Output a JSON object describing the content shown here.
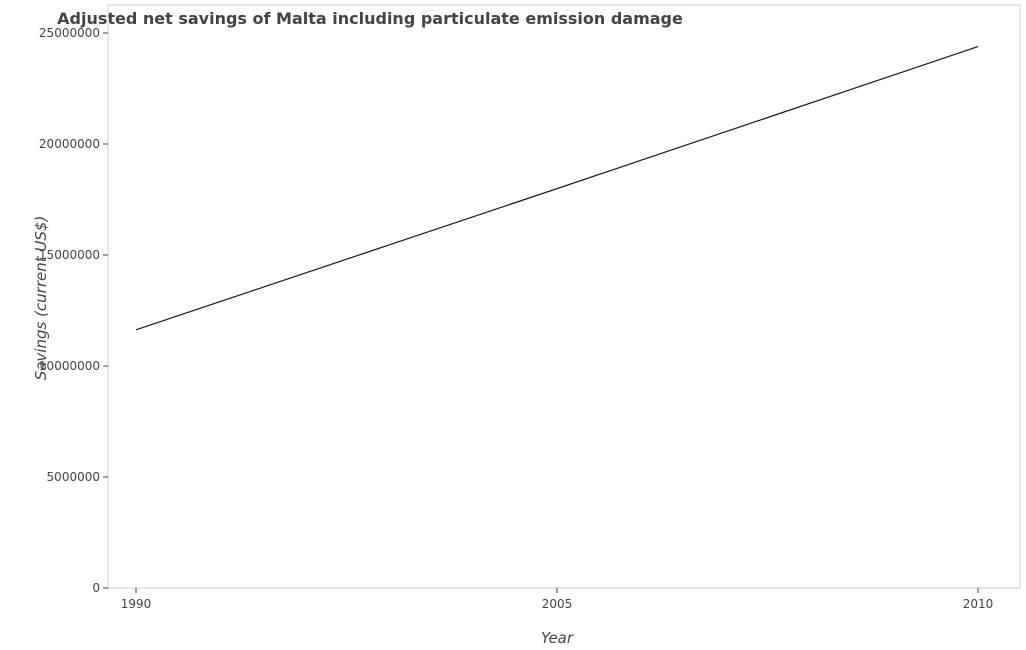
{
  "chart_data": {
    "type": "line",
    "title": "Adjusted net savings of Malta including particulate emission damage",
    "xlabel": "Year",
    "ylabel": "Savings (current US$)",
    "categories": [
      "1990",
      "2005",
      "2010"
    ],
    "series": [
      {
        "values": [
          11630000,
          17990000,
          24390000
        ]
      }
    ],
    "ylim": [
      0,
      25000000
    ],
    "yticks": [
      0,
      5000000,
      10000000,
      15000000,
      20000000,
      25000000
    ],
    "ytick_labels": [
      "0",
      "5000000",
      "10000000",
      "15000000",
      "20000000",
      "25000000"
    ],
    "line_color": "#1b1b1b",
    "grid": false,
    "legend": false
  }
}
